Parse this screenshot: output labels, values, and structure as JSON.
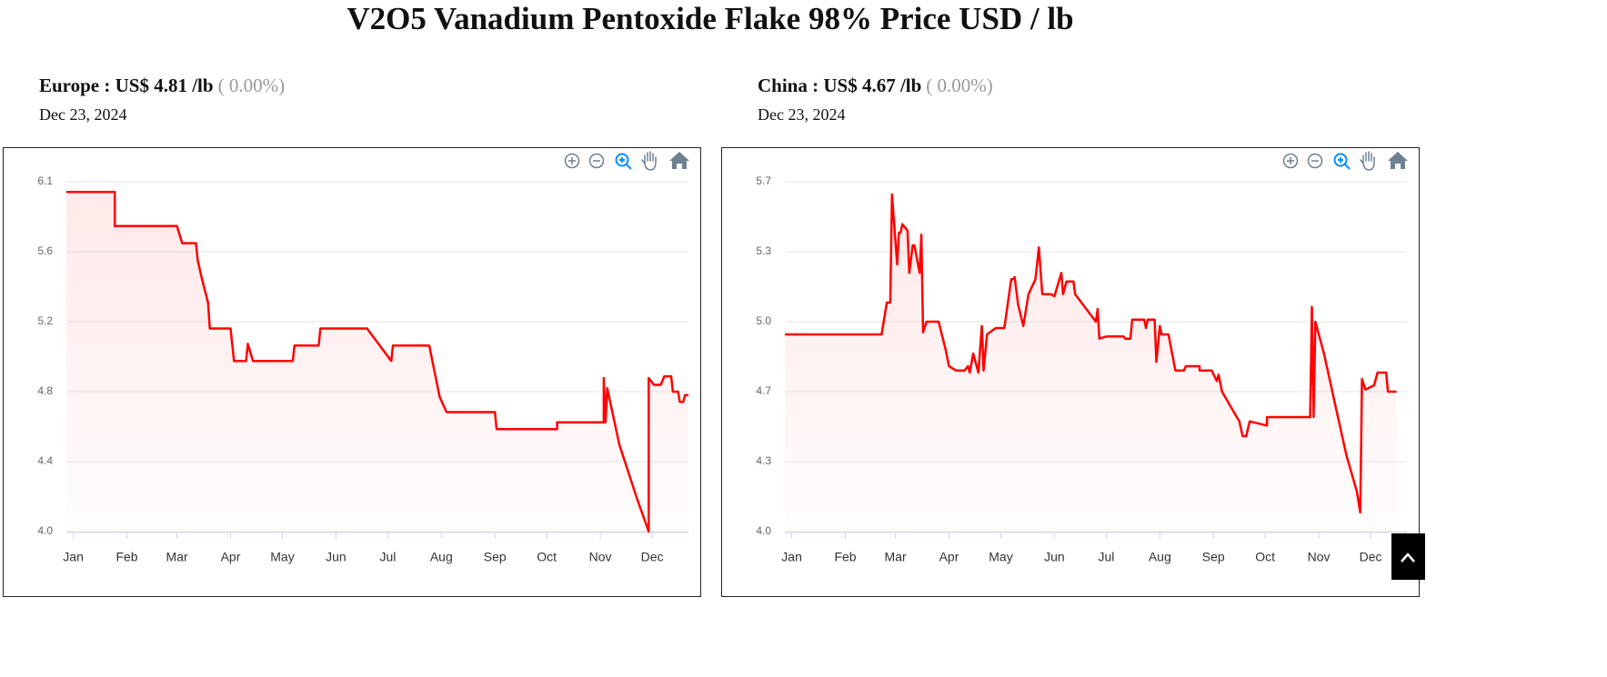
{
  "title": "V2O5 Vanadium Pentoxide Flake 98% Price USD / lb",
  "chart_data": [
    {
      "type": "line",
      "title": "Europe : US$ 4.81 /lb",
      "change": "( 0.00%)",
      "date": "Dec 23, 2024",
      "color": "#ff0000",
      "x": [
        -4,
        24,
        24,
        60,
        63,
        71,
        72,
        74,
        78,
        79,
        91,
        93,
        100,
        101,
        104,
        127,
        128,
        142,
        143,
        170,
        184,
        185,
        206,
        210,
        212,
        216,
        244,
        245,
        280,
        280,
        307,
        307,
        308,
        309,
        316,
        326,
        333,
        333,
        336,
        340,
        342,
        346,
        347,
        350,
        351,
        353,
        354,
        356
      ],
      "values": [
        5.99,
        5.99,
        5.79,
        5.79,
        5.69,
        5.69,
        5.59,
        5.5,
        5.34,
        5.19,
        5.19,
        5.0,
        5.0,
        5.1,
        5.0,
        5.0,
        5.09,
        5.09,
        5.19,
        5.19,
        5.0,
        5.09,
        5.09,
        4.89,
        4.79,
        4.7,
        4.7,
        4.6,
        4.6,
        4.64,
        4.64,
        4.9,
        4.64,
        4.84,
        4.51,
        4.2,
        4.0,
        4.9,
        4.86,
        4.86,
        4.91,
        4.91,
        4.82,
        4.82,
        4.76,
        4.76,
        4.8,
        4.8
      ],
      "xlim": [
        -4,
        356
      ],
      "xticks": [
        {
          "value": 0,
          "label": "Jan"
        },
        {
          "value": 31,
          "label": "Feb"
        },
        {
          "value": 60,
          "label": "Mar"
        },
        {
          "value": 91,
          "label": "Apr"
        },
        {
          "value": 121,
          "label": "May"
        },
        {
          "value": 152,
          "label": "Jun"
        },
        {
          "value": 182,
          "label": "Jul"
        },
        {
          "value": 213,
          "label": "Aug"
        },
        {
          "value": 244,
          "label": "Sep"
        },
        {
          "value": 274,
          "label": "Oct"
        },
        {
          "value": 305,
          "label": "Nov"
        },
        {
          "value": 335,
          "label": "Dec"
        }
      ],
      "ylim": [
        4.0,
        6.05
      ],
      "yticks": [
        {
          "value": 4.0,
          "label": "4.0"
        },
        {
          "value": 4.41,
          "label": "4.4"
        },
        {
          "value": 4.82,
          "label": "4.8"
        },
        {
          "value": 5.23,
          "label": "5.2"
        },
        {
          "value": 5.64,
          "label": "5.6"
        },
        {
          "value": 6.05,
          "label": "6.1"
        }
      ],
      "grid": true
    },
    {
      "type": "line",
      "title": "China : US$ 4.67 /lb",
      "change": "( 0.00%)",
      "date": "Dec 23, 2024",
      "color": "#ff0000",
      "x": [
        -4,
        52,
        55,
        57,
        58,
        61,
        62,
        63,
        64,
        67,
        68,
        70,
        71,
        74,
        75,
        76,
        78,
        85,
        89,
        91,
        95,
        100,
        102,
        103,
        105,
        108,
        110,
        111,
        113,
        118,
        123,
        127,
        128,
        129,
        131,
        134,
        137,
        141,
        143,
        145,
        150,
        152,
        156,
        157,
        159,
        163,
        164,
        176,
        177,
        178,
        182,
        192,
        193,
        196,
        197,
        204,
        205,
        206,
        210,
        211,
        213,
        214,
        218,
        222,
        227,
        228,
        236,
        236,
        243,
        246,
        247,
        249,
        259,
        261,
        263,
        265,
        275,
        275,
        300,
        301,
        302,
        303,
        308,
        315,
        321,
        327,
        329,
        330,
        332,
        337,
        339,
        344,
        345,
        350
      ],
      "values": [
        4.93,
        4.93,
        5.08,
        5.08,
        5.59,
        5.26,
        5.41,
        5.41,
        5.45,
        5.42,
        5.22,
        5.35,
        5.35,
        5.22,
        5.4,
        4.94,
        4.99,
        4.99,
        4.86,
        4.78,
        4.76,
        4.76,
        4.78,
        4.75,
        4.84,
        4.75,
        4.97,
        4.76,
        4.93,
        4.96,
        4.96,
        5.19,
        5.19,
        5.2,
        5.07,
        4.97,
        5.12,
        5.19,
        5.34,
        5.12,
        5.12,
        5.11,
        5.22,
        5.12,
        5.18,
        5.18,
        5.12,
        4.99,
        5.05,
        4.91,
        4.92,
        4.92,
        4.91,
        4.91,
        5.0,
        5.0,
        4.96,
        5.0,
        5.0,
        4.8,
        4.97,
        4.93,
        4.93,
        4.76,
        4.76,
        4.78,
        4.78,
        4.76,
        4.76,
        4.71,
        4.74,
        4.66,
        4.52,
        4.45,
        4.45,
        4.52,
        4.5,
        4.54,
        4.54,
        5.06,
        4.54,
        4.99,
        4.84,
        4.58,
        4.36,
        4.19,
        4.09,
        4.72,
        4.67,
        4.69,
        4.75,
        4.75,
        4.66,
        4.66
      ],
      "xlim": [
        -4,
        356
      ],
      "xticks": [
        {
          "value": 0,
          "label": "Jan"
        },
        {
          "value": 31,
          "label": "Feb"
        },
        {
          "value": 60,
          "label": "Mar"
        },
        {
          "value": 91,
          "label": "Apr"
        },
        {
          "value": 121,
          "label": "May"
        },
        {
          "value": 152,
          "label": "Jun"
        },
        {
          "value": 182,
          "label": "Jul"
        },
        {
          "value": 213,
          "label": "Aug"
        },
        {
          "value": 244,
          "label": "Sep"
        },
        {
          "value": 274,
          "label": "Oct"
        },
        {
          "value": 305,
          "label": "Nov"
        },
        {
          "value": 335,
          "label": "Dec"
        }
      ],
      "ylim": [
        4.0,
        5.65
      ],
      "yticks": [
        {
          "value": 4.0,
          "label": "4.0"
        },
        {
          "value": 4.33,
          "label": "4.3"
        },
        {
          "value": 4.66,
          "label": "4.7"
        },
        {
          "value": 4.99,
          "label": "5.0"
        },
        {
          "value": 5.32,
          "label": "5.3"
        },
        {
          "value": 5.65,
          "label": "5.7"
        }
      ],
      "grid": true
    }
  ]
}
